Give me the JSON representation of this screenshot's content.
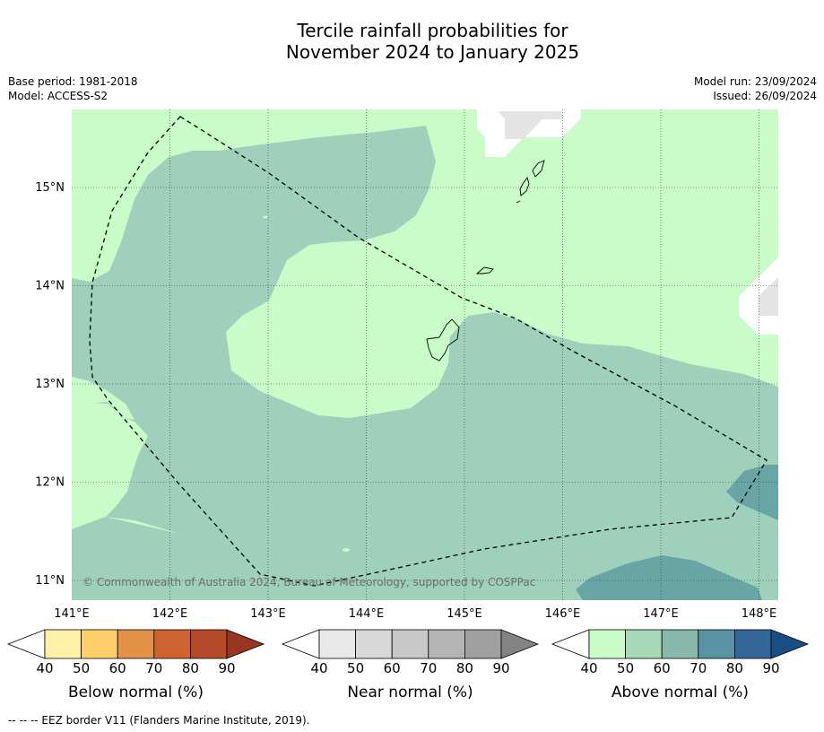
{
  "title_line1": "Tercile rainfall probabilities for",
  "title_line2": "November 2024 to January 2025",
  "meta_left": [
    "Base period: 1981-2018",
    "Model: ACCESS-S2"
  ],
  "meta_right": [
    "Model run: 23/09/2024",
    "Issued: 26/09/2024"
  ],
  "copyright": "© Commonwealth of Australia 2024, Bureau of Meteorology, supported by COSPPac",
  "lat_labels": [
    "15°N",
    "14°N",
    "13°N",
    "12°N",
    "11°N"
  ],
  "lon_labels": [
    "141°E",
    "142°E",
    "143°E",
    "144°E",
    "145°E",
    "146°E",
    "147°E",
    "148°E"
  ],
  "colorbars": [
    {
      "title": "Below normal (%)",
      "ticks": [
        "40",
        "50",
        "60",
        "70",
        "80",
        "90"
      ],
      "colors": [
        "#ffffff",
        "#fff0a8",
        "#fdcf6a",
        "#e29348",
        "#cf6433",
        "#b44a29",
        "#983520"
      ]
    },
    {
      "title": "Near normal (%)",
      "ticks": [
        "40",
        "50",
        "60",
        "70",
        "80",
        "90"
      ],
      "colors": [
        "#ffffff",
        "#e8e8e8",
        "#d8d8d8",
        "#c8c8c8",
        "#b4b4b4",
        "#a0a0a0",
        "#838383"
      ]
    },
    {
      "title": "Above normal (%)",
      "ticks": [
        "40",
        "50",
        "60",
        "70",
        "80",
        "90"
      ],
      "colors": [
        "#ffffff",
        "#c9fcc9",
        "#a5d9b8",
        "#88b9ab",
        "#5992a3",
        "#346699",
        "#1a4d84"
      ]
    }
  ],
  "footnote": "--  --  -- EEZ border V11 (Flanders Marine Institute, 2019).",
  "colors": {
    "above_50": "#c9fcc9",
    "above_60": "#9fd0bb",
    "above_70": "#6aa5a6",
    "near_40": "#e4e4e4"
  }
}
